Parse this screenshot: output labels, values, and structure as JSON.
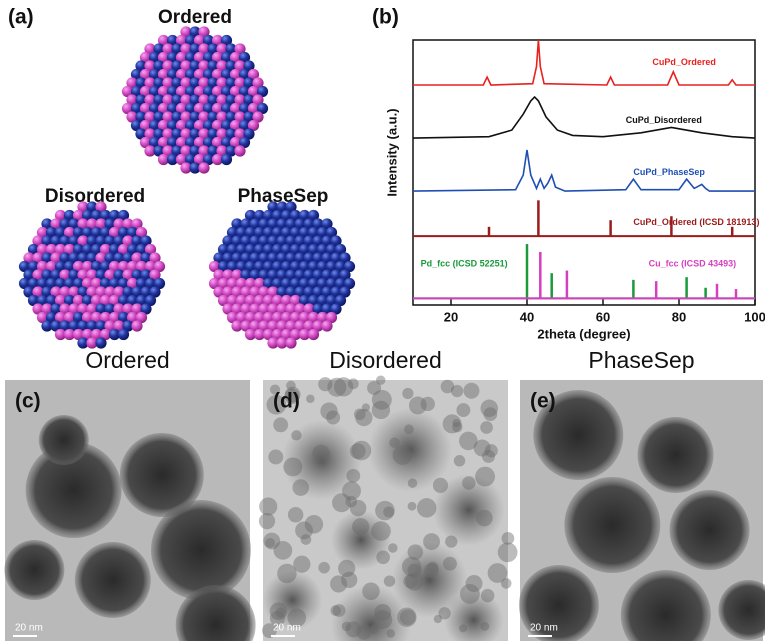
{
  "panel_a": {
    "label": "(a)",
    "models": [
      "Ordered",
      "Disordered",
      "PhaseSep"
    ]
  },
  "panel_b": {
    "label": "(b)"
  },
  "chart_data": {
    "type": "line",
    "xlabel": "2theta (degree)",
    "ylabel": "Intensity (a.u.)",
    "xlim": [
      10,
      100
    ],
    "xticks": [
      20,
      40,
      60,
      80,
      100
    ],
    "ylim": [
      0,
      10
    ],
    "yticks": [],
    "series": [
      {
        "name": "CuPd_Ordered",
        "color": "#e8211f",
        "kind": "trace",
        "x": [
          10,
          28.5,
          29.5,
          30.5,
          41.5,
          42.5,
          43,
          43.5,
          44.5,
          61,
          62,
          63,
          77,
          78.5,
          80,
          93,
          94,
          95,
          100
        ],
        "values": [
          8.3,
          8.3,
          8.6,
          8.3,
          8.35,
          9.0,
          10.0,
          9.0,
          8.35,
          8.3,
          8.6,
          8.3,
          8.3,
          8.8,
          8.3,
          8.3,
          8.5,
          8.3,
          8.3
        ]
      },
      {
        "name": "CuPd_Disordered",
        "color": "#111111",
        "kind": "trace",
        "x": [
          10,
          30,
          36,
          39,
          41,
          42,
          43,
          45,
          48,
          52,
          60,
          70,
          78,
          86,
          94,
          100
        ],
        "values": [
          6.3,
          6.35,
          6.6,
          7.2,
          7.7,
          7.85,
          7.7,
          7.1,
          6.6,
          6.4,
          6.35,
          6.5,
          6.7,
          6.5,
          6.35,
          6.3
        ]
      },
      {
        "name": "CuPd_PhaseSep",
        "color": "#1f4fb5",
        "kind": "trace",
        "x": [
          10,
          37,
          39,
          40,
          41,
          42.5,
          43.5,
          44.5,
          45.5,
          46.5,
          47.5,
          50,
          66,
          68,
          70,
          80,
          82,
          84,
          86,
          87,
          88,
          100
        ],
        "values": [
          4.3,
          4.35,
          4.9,
          5.85,
          4.9,
          4.4,
          4.75,
          4.4,
          4.6,
          4.9,
          4.45,
          4.3,
          4.35,
          4.75,
          4.35,
          4.35,
          4.75,
          4.4,
          4.55,
          4.4,
          4.3,
          4.3
        ]
      },
      {
        "name": "CuPd_Ordered (ICSD 181913)",
        "color": "#9b1b1b",
        "kind": "stick",
        "baseline": 2.6,
        "x": [
          30,
          43,
          62,
          78,
          94
        ],
        "values": [
          2.95,
          3.95,
          3.2,
          3.35,
          2.95
        ]
      },
      {
        "name": "Pd_fcc (ICSD 52251)",
        "color": "#1a9a3a",
        "kind": "stick",
        "baseline": 0.25,
        "x": [
          40,
          46.5,
          68,
          82,
          87
        ],
        "values": [
          2.3,
          1.2,
          0.95,
          1.05,
          0.65
        ]
      },
      {
        "name": "Cu_fcc (ICSD 43493)",
        "color": "#d63fc0",
        "kind": "stick",
        "baseline": 0.25,
        "x": [
          43.5,
          50.5,
          74,
          90,
          95
        ],
        "values": [
          2.0,
          1.3,
          0.9,
          0.8,
          0.6
        ]
      }
    ]
  },
  "tem": [
    {
      "label": "(c)",
      "title": "Ordered",
      "scale": "20 nm"
    },
    {
      "label": "(d)",
      "title": "Disordered",
      "scale": "20 nm"
    },
    {
      "label": "(e)",
      "title": "PhaseSep",
      "scale": "20 nm"
    }
  ]
}
